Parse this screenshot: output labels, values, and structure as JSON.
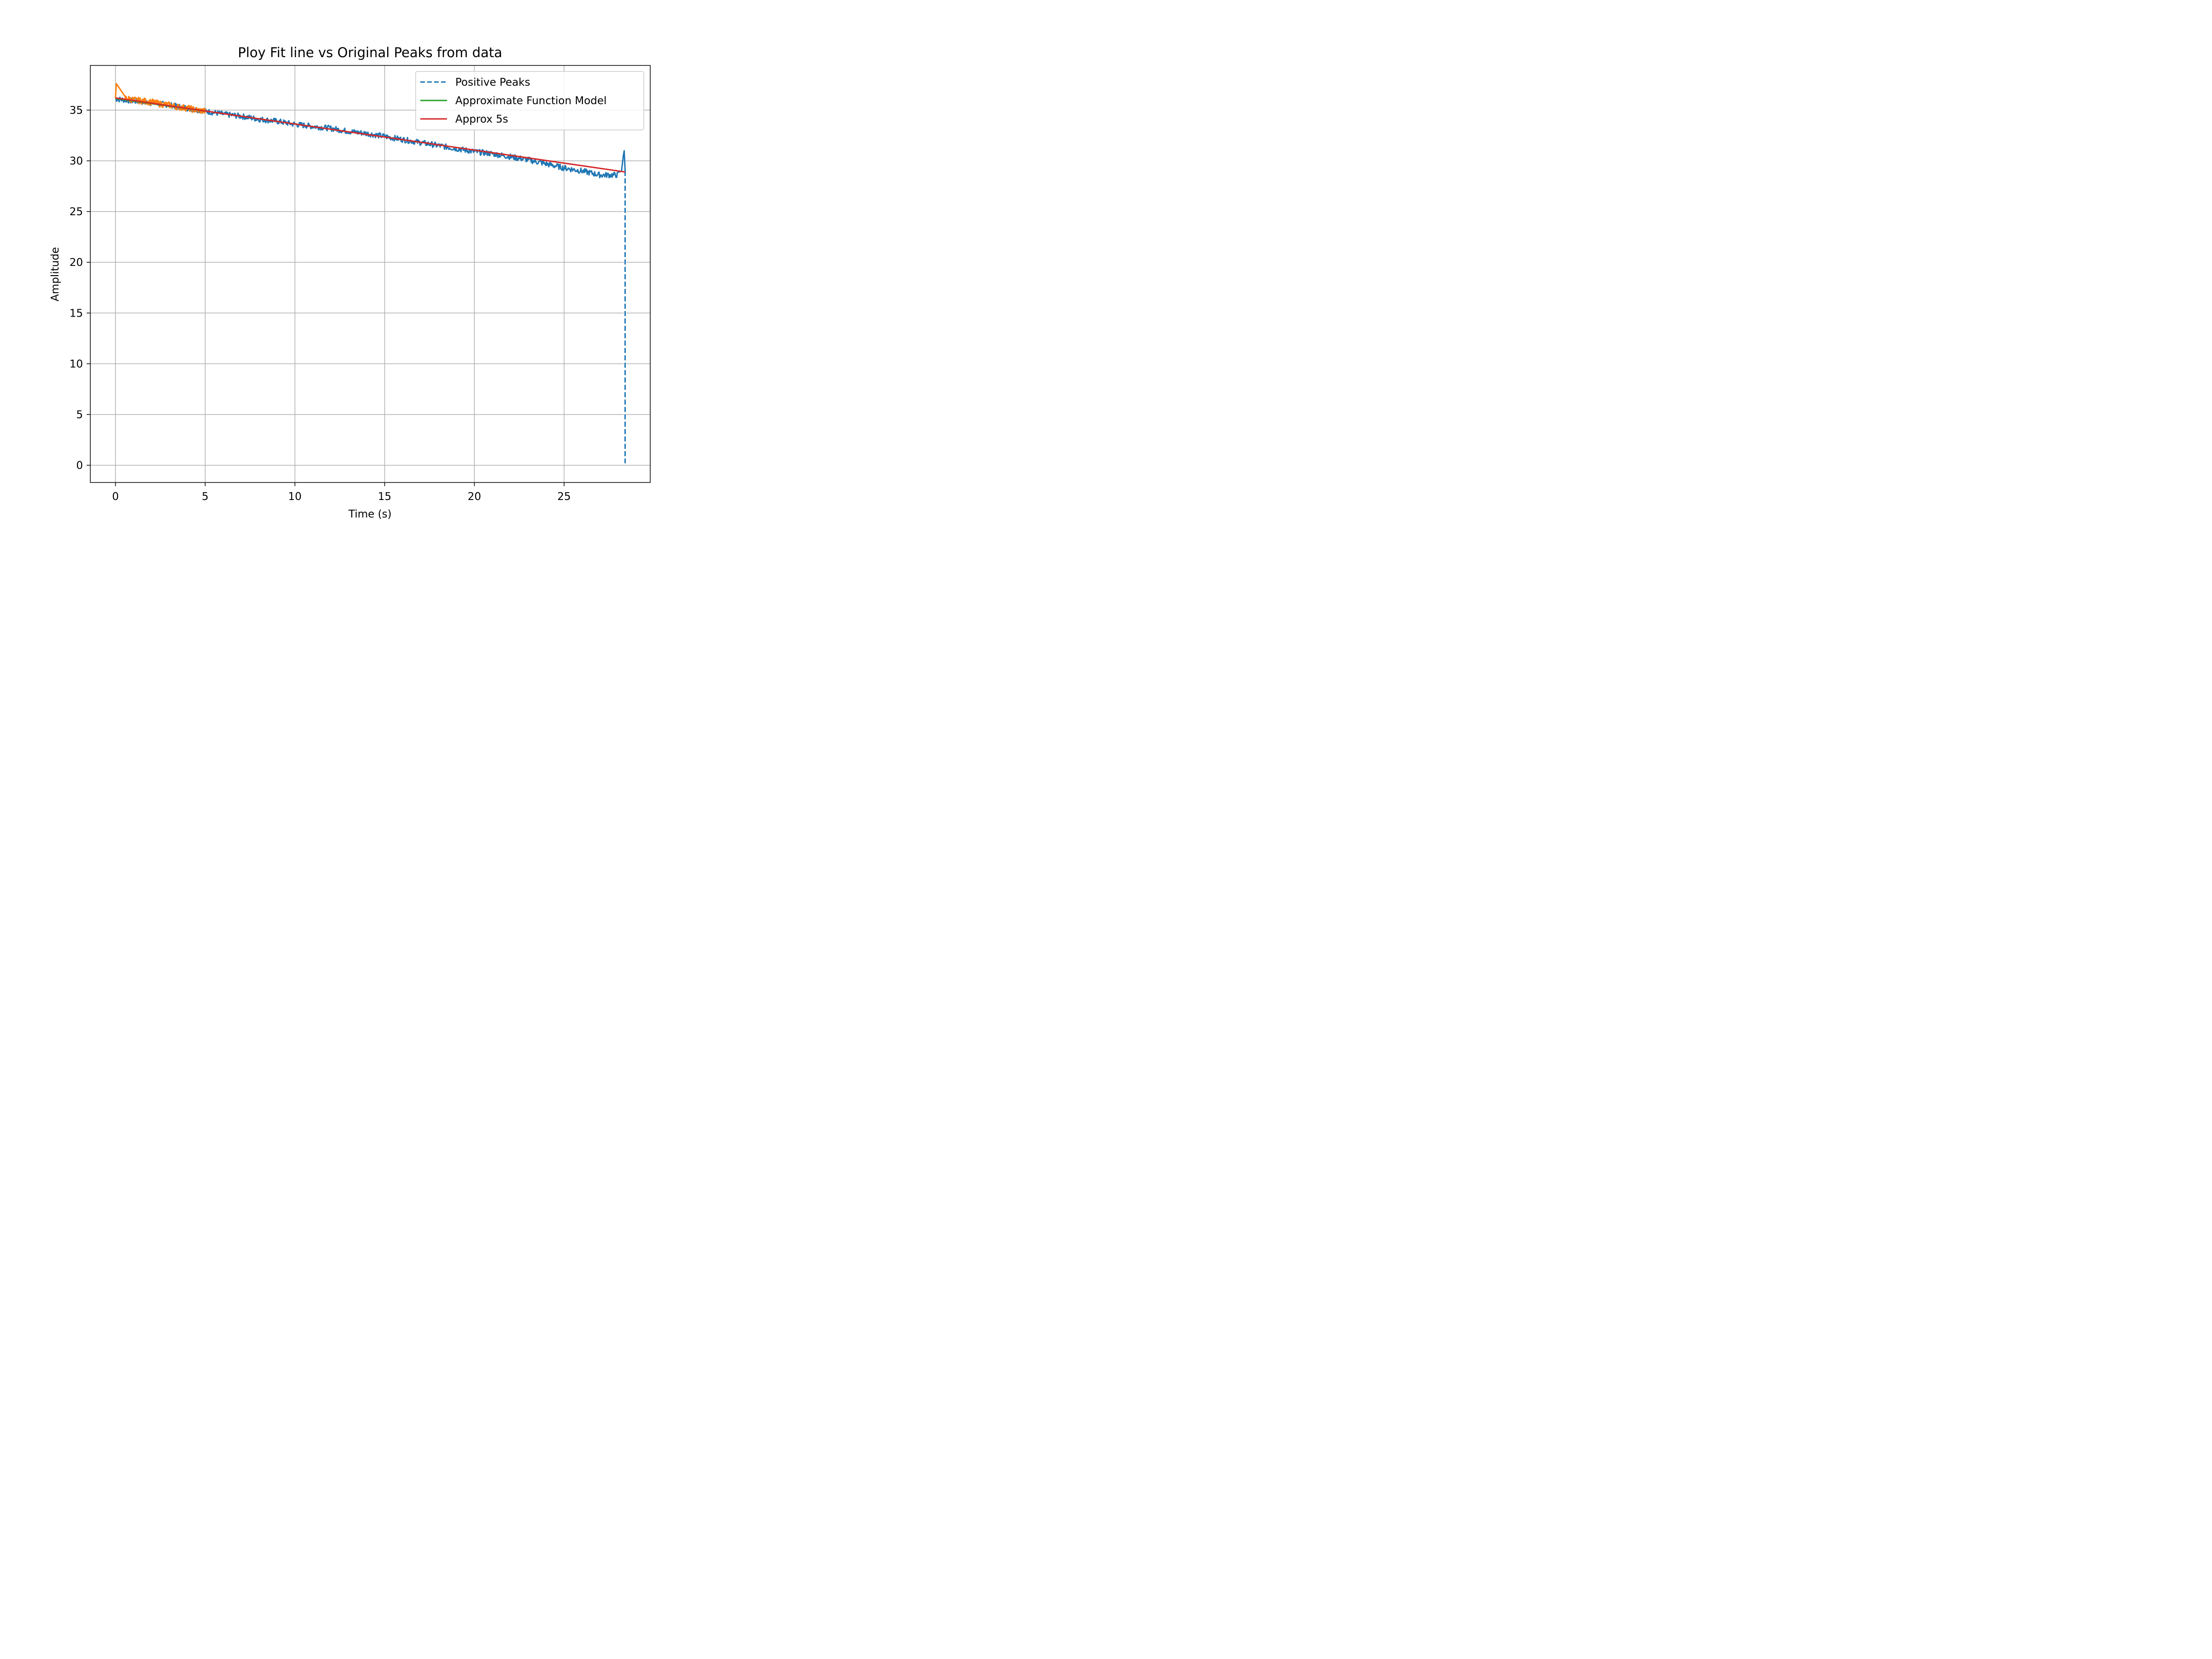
{
  "chart_data": {
    "type": "line",
    "title": "Ploy Fit line vs Original Peaks from data",
    "xlabel": "Time (s)",
    "ylabel": "Amplitude",
    "xlim": [
      -1.4,
      29.8
    ],
    "ylim": [
      -1.7,
      39.4
    ],
    "x_ticks": [
      0,
      5,
      10,
      15,
      20,
      25
    ],
    "y_ticks": [
      0,
      5,
      10,
      15,
      20,
      25,
      30,
      35
    ],
    "grid": true,
    "legend_position": "top-right",
    "series": [
      {
        "name": "Positive Peaks",
        "style": "dashed",
        "color": "#1f77b4",
        "x": [
          0,
          1,
          2,
          3,
          4,
          5,
          6,
          7,
          8,
          9,
          10,
          11,
          12,
          13,
          14,
          15,
          16,
          17,
          18,
          19,
          20,
          21,
          22,
          23,
          24,
          25,
          26,
          27,
          28.0,
          28.2,
          28.3,
          28.35,
          28.4,
          28.4
        ],
        "y": [
          36.1,
          35.9,
          35.7,
          35.5,
          35.2,
          34.9,
          34.6,
          34.4,
          34.1,
          33.9,
          33.6,
          33.4,
          33.2,
          32.9,
          32.7,
          32.4,
          32.1,
          31.8,
          31.5,
          31.2,
          30.9,
          30.7,
          30.4,
          30.1,
          29.7,
          29.3,
          29.0,
          28.6,
          28.6,
          29.0,
          30.5,
          31.0,
          29.0,
          0.2
        ]
      },
      {
        "name": "",
        "style": "solid",
        "color": "#ff7f0e",
        "x": [
          0,
          0.05,
          0.5,
          1,
          1.5,
          2,
          2.5,
          3,
          3.5,
          4,
          4.5,
          5
        ],
        "y": [
          36.2,
          37.6,
          36.2,
          36.0,
          35.9,
          35.8,
          35.6,
          35.5,
          35.3,
          35.2,
          35.0,
          34.9
        ]
      },
      {
        "name": "Approximate Function Model",
        "style": "solid",
        "color": "#2ca02c",
        "x": [
          0,
          5
        ],
        "y": [
          36.15,
          34.9
        ]
      },
      {
        "name": "Approx 5s",
        "style": "solid",
        "color": "#d62728",
        "x": [
          0,
          28.4
        ],
        "y": [
          36.2,
          28.9
        ]
      }
    ]
  },
  "colors": {
    "positive_peaks": "#1f77b4",
    "segment_5s": "#ff7f0e",
    "approx_model": "#2ca02c",
    "approx_5s": "#d62728",
    "grid": "#b0b0b0"
  }
}
